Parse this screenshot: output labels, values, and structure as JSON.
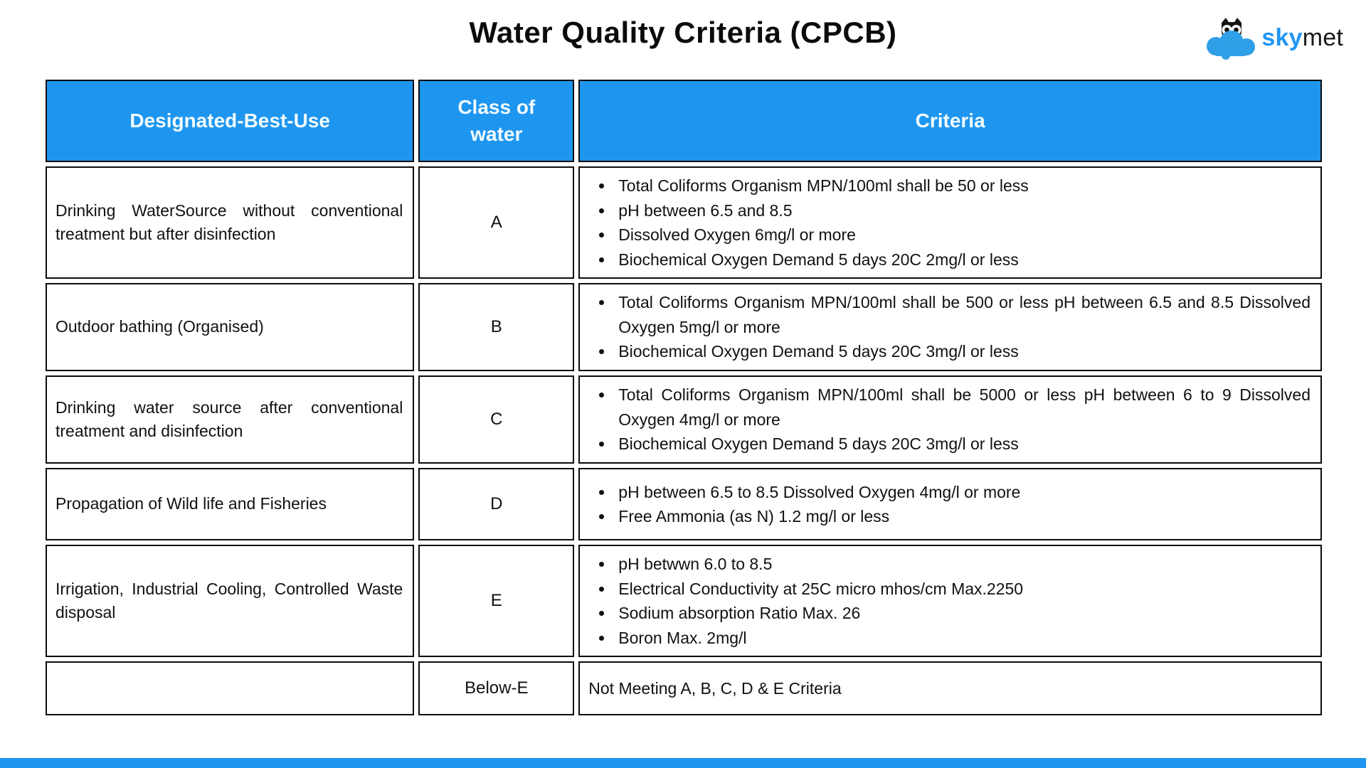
{
  "title": "Water Quality Criteria (CPCB)",
  "logo": {
    "sky": "sky",
    "met": "met"
  },
  "colors": {
    "header_blue": "#1e96f0",
    "logo_cloud_blue": "#2f9fe8",
    "border_black": "#0c0c0c",
    "header_text": "#f2fbff"
  },
  "table": {
    "headers": [
      "Designated-Best-Use",
      "Class of water",
      "Criteria"
    ],
    "rows": [
      {
        "use": "Drinking WaterSource without conventional treatment but after disinfection",
        "class": "A",
        "bullets": [
          "Total Coliforms Organism MPN/100ml shall be 50 or less",
          "pH between 6.5 and 8.5",
          "Dissolved Oxygen 6mg/l or more",
          "Biochemical Oxygen Demand 5 days 20C 2mg/l or less"
        ]
      },
      {
        "use": "Outdoor bathing (Organised)",
        "class": "B",
        "bullets": [
          "Total Coliforms Organism MPN/100ml shall be 500 or less pH between 6.5 and 8.5 Dissolved Oxygen 5mg/l or more",
          "Biochemical Oxygen Demand 5 days 20C 3mg/l or less"
        ]
      },
      {
        "use": "Drinking water source after conventional treatment and disinfection",
        "class": "C",
        "bullets": [
          "Total Coliforms Organism MPN/100ml shall be 5000 or less pH between 6 to 9 Dissolved Oxygen 4mg/l or more",
          "Biochemical Oxygen Demand 5 days 20C 3mg/l or less"
        ]
      },
      {
        "use": "Propagation of Wild life and Fisheries",
        "class": "D",
        "bullets": [
          "pH between 6.5 to 8.5 Dissolved Oxygen 4mg/l or more",
          "Free Ammonia (as N) 1.2 mg/l or less"
        ]
      },
      {
        "use": "Irrigation, Industrial Cooling, Controlled Waste disposal",
        "class": "E",
        "bullets": [
          "pH betwwn 6.0 to 8.5",
          "Electrical Conductivity at 25C micro mhos/cm Max.2250",
          "Sodium absorption Ratio Max. 26",
          "Boron Max. 2mg/l"
        ]
      },
      {
        "use": "",
        "class": "Below-E",
        "text": "Not Meeting A, B, C, D & E Criteria"
      }
    ]
  }
}
